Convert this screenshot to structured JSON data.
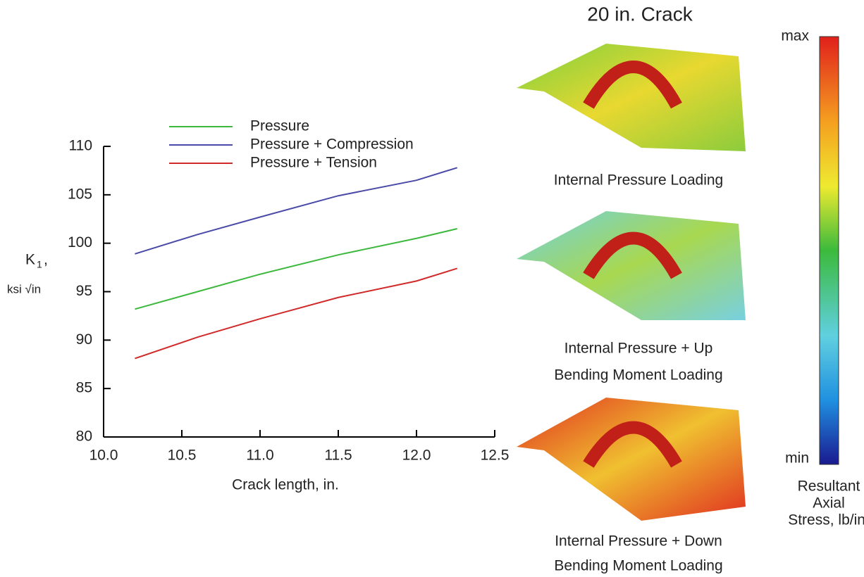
{
  "chart_data": {
    "type": "line",
    "x_label": "Crack length, in.",
    "y_label": {
      "symbol": "K",
      "subscript": "1",
      "suffix": ",",
      "units": "ksi √in"
    },
    "x": [
      10.2,
      10.6,
      11.0,
      11.5,
      12.0,
      12.26
    ],
    "series": [
      {
        "name": "Pressure",
        "color": "#3cb83c",
        "values": [
          93.2,
          95.0,
          96.8,
          98.8,
          100.5,
          101.5
        ]
      },
      {
        "name": "Pressure + Compression",
        "color": "#4a4aa8",
        "values": [
          98.9,
          100.9,
          102.7,
          104.9,
          106.5,
          107.8
        ]
      },
      {
        "name": "Pressure + Tension",
        "color": "#d02a2a",
        "values": [
          88.1,
          90.3,
          92.2,
          94.4,
          96.1,
          97.4
        ]
      }
    ],
    "xlim": [
      10,
      12.5
    ],
    "xticks": [
      {
        "value": 10,
        "label": "10.0"
      },
      10.5,
      {
        "value": 11,
        "label": "11.0"
      },
      11.5,
      {
        "value": 12,
        "label": "12.0"
      },
      12.5
    ],
    "ylim": [
      80,
      110
    ],
    "yticks": [
      80,
      85,
      90,
      95,
      100,
      105,
      110
    ],
    "grid": false
  },
  "figure_panel": {
    "title": "20 in. Crack",
    "panels": [
      [
        "Internal Pressure Loading"
      ],
      [
        "Internal Pressure + Up",
        "Bending Moment Loading"
      ],
      [
        "Internal Pressure + Down",
        "Bending Moment Loading"
      ]
    ],
    "colorbar": {
      "max": "max",
      "min": "min",
      "label": [
        "Resultant",
        "Axial",
        "Stress, lb/in."
      ]
    }
  }
}
